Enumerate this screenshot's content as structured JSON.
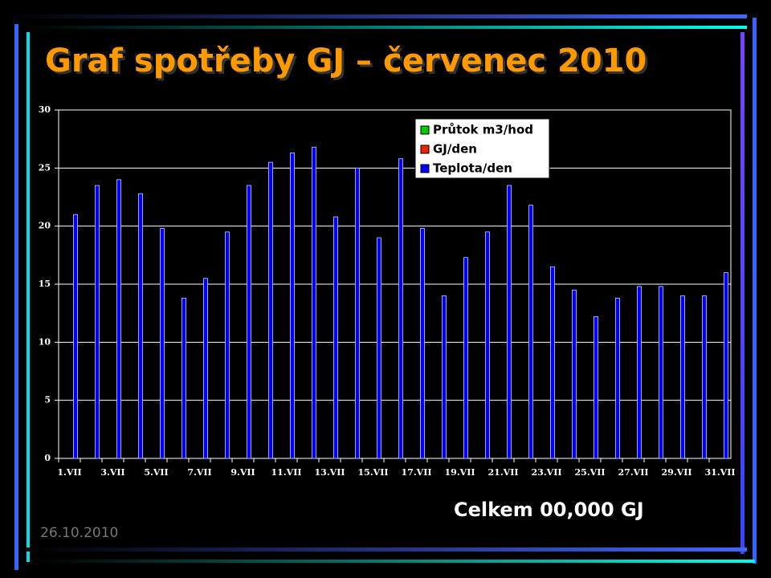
{
  "chart_data": {
    "type": "bar",
    "title": "Graf spotřeby GJ – červenec 2010",
    "categories": [
      "1.VII",
      null,
      "3.VII",
      null,
      "5.VII",
      null,
      "7.VII",
      null,
      "9.VII",
      null,
      "11.VII",
      null,
      "13.VII",
      null,
      "15.VII",
      null,
      "17.VII",
      null,
      "19.VII",
      null,
      "21.VII",
      null,
      "23.VII",
      null,
      "25.VII",
      null,
      "27.VII",
      null,
      "29.VII",
      null,
      "31.VII"
    ],
    "series": [
      {
        "name": "Průtok m3/hod",
        "color": "#00cc00",
        "values": [
          0,
          0,
          0,
          0,
          0,
          0,
          0,
          0,
          0,
          0,
          0,
          0,
          0,
          0,
          0,
          0,
          0,
          0,
          0,
          0,
          0,
          0,
          0,
          0,
          0,
          0,
          0,
          0,
          0,
          0,
          0
        ]
      },
      {
        "name": "GJ/den",
        "color": "#ee2200",
        "values": [
          0,
          0,
          0,
          0,
          0,
          0,
          0,
          0,
          0,
          0,
          0,
          0,
          0,
          0,
          0,
          0,
          0,
          0,
          0,
          0,
          0,
          0,
          0,
          0,
          0,
          0,
          0,
          0,
          0,
          0,
          0
        ]
      },
      {
        "name": "Teplota/den",
        "color": "#0000ff",
        "values": [
          21,
          23.5,
          24,
          22.8,
          19.8,
          13.8,
          15.5,
          19.5,
          23.5,
          25.5,
          26.3,
          26.8,
          20.8,
          25,
          19,
          25.8,
          19.8,
          14,
          17.3,
          19.5,
          23.5,
          21.8,
          16.5,
          14.5,
          12.2,
          13.8,
          14.8,
          14.8,
          14,
          14,
          16
        ]
      }
    ],
    "ylim": [
      0,
      30
    ],
    "yticks": [
      0,
      5,
      10,
      15,
      20,
      25,
      30
    ],
    "grid": true,
    "legend": "top-right",
    "annotations": [
      "Celkem 00,000 GJ"
    ]
  },
  "date": "26.10.2010"
}
